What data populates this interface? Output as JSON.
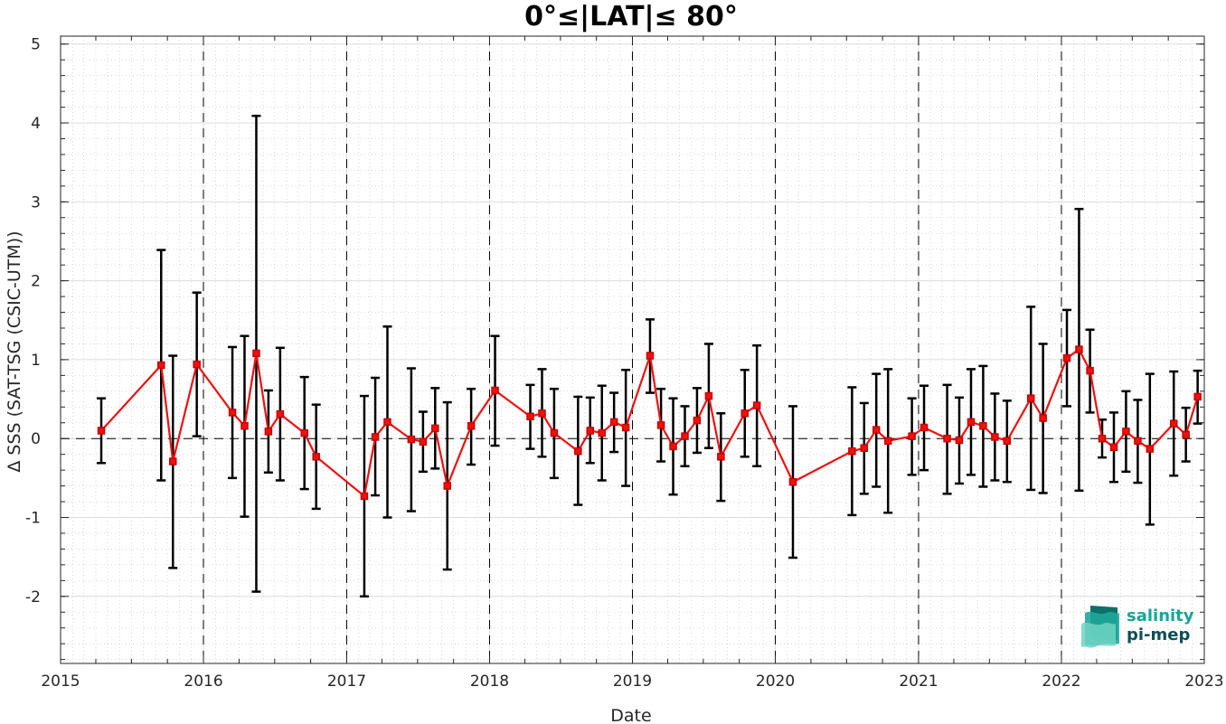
{
  "chart_data": {
    "type": "line",
    "title": "0°≤|LAT|≤ 80°",
    "xlabel": "Date",
    "ylabel": "Δ SSS (SAT-TSG (CSIC-UTM))",
    "xlim": [
      "2015-01-01",
      "2023-01-01"
    ],
    "ylim": [
      -2.85,
      5.1
    ],
    "x_ticks": [
      {
        "date": "2015-01-01",
        "label": "2015"
      },
      {
        "date": "2016-01-01",
        "label": "2016"
      },
      {
        "date": "2017-01-01",
        "label": "2017"
      },
      {
        "date": "2018-01-01",
        "label": "2018"
      },
      {
        "date": "2019-01-01",
        "label": "2019"
      },
      {
        "date": "2020-01-01",
        "label": "2020"
      },
      {
        "date": "2021-01-01",
        "label": "2021"
      },
      {
        "date": "2022-01-01",
        "label": "2022"
      },
      {
        "date": "2023-01-01",
        "label": "2023"
      }
    ],
    "y_ticks": [
      {
        "value": 5,
        "label": "5"
      },
      {
        "value": 4,
        "label": "4"
      },
      {
        "value": 3,
        "label": "3"
      },
      {
        "value": 2,
        "label": "2"
      },
      {
        "value": 1,
        "label": "1"
      },
      {
        "value": 0,
        "label": "0"
      },
      {
        "value": -1,
        "label": "-1"
      },
      {
        "value": -2,
        "label": "-2"
      }
    ],
    "grid": true,
    "year_separators": "dashed vertical lines at each year",
    "zero_line": "dashed horizontal line at 0",
    "series": [
      {
        "color": "#ee1111",
        "marker": "square",
        "points": [
          {
            "x": "2015-04-15",
            "y": 0.1,
            "lo": -0.31,
            "hi": 0.51
          },
          {
            "x": "2015-09-15",
            "y": 0.93,
            "lo": -0.53,
            "hi": 2.39
          },
          {
            "x": "2015-10-15",
            "y": -0.29,
            "lo": -1.64,
            "hi": 1.05
          },
          {
            "x": "2015-12-15",
            "y": 0.94,
            "lo": 0.03,
            "hi": 1.85
          },
          {
            "x": "2016-03-15",
            "y": 0.33,
            "lo": -0.5,
            "hi": 1.16
          },
          {
            "x": "2016-04-15",
            "y": 0.16,
            "lo": -0.99,
            "hi": 1.3
          },
          {
            "x": "2016-05-15",
            "y": 1.08,
            "lo": -1.94,
            "hi": 4.09
          },
          {
            "x": "2016-06-15",
            "y": 0.09,
            "lo": -0.43,
            "hi": 0.61
          },
          {
            "x": "2016-07-15",
            "y": 0.31,
            "lo": -0.53,
            "hi": 1.15
          },
          {
            "x": "2016-09-15",
            "y": 0.07,
            "lo": -0.64,
            "hi": 0.78
          },
          {
            "x": "2016-10-15",
            "y": -0.23,
            "lo": -0.89,
            "hi": 0.43
          },
          {
            "x": "2017-02-15",
            "y": -0.73,
            "lo": -2.0,
            "hi": 0.54
          },
          {
            "x": "2017-03-15",
            "y": 0.02,
            "lo": -0.72,
            "hi": 0.77
          },
          {
            "x": "2017-04-15",
            "y": 0.21,
            "lo": -1.0,
            "hi": 1.42
          },
          {
            "x": "2017-06-15",
            "y": -0.01,
            "lo": -0.92,
            "hi": 0.89
          },
          {
            "x": "2017-07-15",
            "y": -0.04,
            "lo": -0.42,
            "hi": 0.34
          },
          {
            "x": "2017-08-15",
            "y": 0.13,
            "lo": -0.38,
            "hi": 0.64
          },
          {
            "x": "2017-09-15",
            "y": -0.6,
            "lo": -1.66,
            "hi": 0.46
          },
          {
            "x": "2017-11-15",
            "y": 0.16,
            "lo": -0.33,
            "hi": 0.63
          },
          {
            "x": "2018-01-15",
            "y": 0.61,
            "lo": -0.09,
            "hi": 1.3
          },
          {
            "x": "2018-04-15",
            "y": 0.28,
            "lo": -0.13,
            "hi": 0.68
          },
          {
            "x": "2018-05-15",
            "y": 0.32,
            "lo": -0.23,
            "hi": 0.88
          },
          {
            "x": "2018-06-15",
            "y": 0.07,
            "lo": -0.5,
            "hi": 0.63
          },
          {
            "x": "2018-08-15",
            "y": -0.16,
            "lo": -0.84,
            "hi": 0.53
          },
          {
            "x": "2018-09-15",
            "y": 0.1,
            "lo": -0.31,
            "hi": 0.52
          },
          {
            "x": "2018-10-15",
            "y": 0.07,
            "lo": -0.53,
            "hi": 0.67
          },
          {
            "x": "2018-11-15",
            "y": 0.21,
            "lo": -0.17,
            "hi": 0.58
          },
          {
            "x": "2018-12-15",
            "y": 0.14,
            "lo": -0.6,
            "hi": 0.87
          },
          {
            "x": "2019-02-15",
            "y": 1.05,
            "lo": 0.58,
            "hi": 1.51
          },
          {
            "x": "2019-03-15",
            "y": 0.17,
            "lo": -0.29,
            "hi": 0.63
          },
          {
            "x": "2019-04-15",
            "y": -0.1,
            "lo": -0.71,
            "hi": 0.51
          },
          {
            "x": "2019-05-15",
            "y": 0.03,
            "lo": -0.35,
            "hi": 0.41
          },
          {
            "x": "2019-06-15",
            "y": 0.23,
            "lo": -0.18,
            "hi": 0.64
          },
          {
            "x": "2019-07-15",
            "y": 0.54,
            "lo": -0.12,
            "hi": 1.2
          },
          {
            "x": "2019-08-15",
            "y": -0.23,
            "lo": -0.79,
            "hi": 0.32
          },
          {
            "x": "2019-10-15",
            "y": 0.32,
            "lo": -0.23,
            "hi": 0.87
          },
          {
            "x": "2019-11-15",
            "y": 0.42,
            "lo": -0.35,
            "hi": 1.18
          },
          {
            "x": "2020-02-15",
            "y": -0.55,
            "lo": -1.51,
            "hi": 0.41
          },
          {
            "x": "2020-07-15",
            "y": -0.16,
            "lo": -0.97,
            "hi": 0.65
          },
          {
            "x": "2020-08-15",
            "y": -0.12,
            "lo": -0.7,
            "hi": 0.45
          },
          {
            "x": "2020-09-15",
            "y": 0.11,
            "lo": -0.61,
            "hi": 0.82
          },
          {
            "x": "2020-10-15",
            "y": -0.03,
            "lo": -0.94,
            "hi": 0.88
          },
          {
            "x": "2020-12-15",
            "y": 0.03,
            "lo": -0.46,
            "hi": 0.51
          },
          {
            "x": "2021-01-15",
            "y": 0.14,
            "lo": -0.4,
            "hi": 0.67
          },
          {
            "x": "2021-03-15",
            "y": 0.0,
            "lo": -0.7,
            "hi": 0.68
          },
          {
            "x": "2021-04-15",
            "y": -0.02,
            "lo": -0.57,
            "hi": 0.52
          },
          {
            "x": "2021-05-15",
            "y": 0.21,
            "lo": -0.46,
            "hi": 0.88
          },
          {
            "x": "2021-06-15",
            "y": 0.16,
            "lo": -0.61,
            "hi": 0.92
          },
          {
            "x": "2021-07-15",
            "y": 0.02,
            "lo": -0.53,
            "hi": 0.57
          },
          {
            "x": "2021-08-15",
            "y": -0.03,
            "lo": -0.55,
            "hi": 0.48
          },
          {
            "x": "2021-10-15",
            "y": 0.51,
            "lo": -0.65,
            "hi": 1.67
          },
          {
            "x": "2021-11-15",
            "y": 0.26,
            "lo": -0.69,
            "hi": 1.2
          },
          {
            "x": "2022-01-15",
            "y": 1.02,
            "lo": 0.41,
            "hi": 1.63
          },
          {
            "x": "2022-02-15",
            "y": 1.13,
            "lo": -0.66,
            "hi": 2.91
          },
          {
            "x": "2022-03-15",
            "y": 0.86,
            "lo": 0.33,
            "hi": 1.38
          },
          {
            "x": "2022-04-15",
            "y": 0.0,
            "lo": -0.24,
            "hi": 0.24
          },
          {
            "x": "2022-05-15",
            "y": -0.11,
            "lo": -0.55,
            "hi": 0.33
          },
          {
            "x": "2022-06-15",
            "y": 0.09,
            "lo": -0.42,
            "hi": 0.6
          },
          {
            "x": "2022-07-15",
            "y": -0.03,
            "lo": -0.56,
            "hi": 0.49
          },
          {
            "x": "2022-08-15",
            "y": -0.13,
            "lo": -1.09,
            "hi": 0.82
          },
          {
            "x": "2022-10-15",
            "y": 0.19,
            "lo": -0.47,
            "hi": 0.85
          },
          {
            "x": "2022-11-15",
            "y": 0.05,
            "lo": -0.29,
            "hi": 0.39
          },
          {
            "x": "2022-12-15",
            "y": 0.53,
            "lo": 0.19,
            "hi": 0.86
          }
        ]
      }
    ]
  },
  "logo": {
    "line1": "salinity",
    "line2": "pi-mep",
    "color1": "#1aa596",
    "color2": "#0c4f55"
  }
}
